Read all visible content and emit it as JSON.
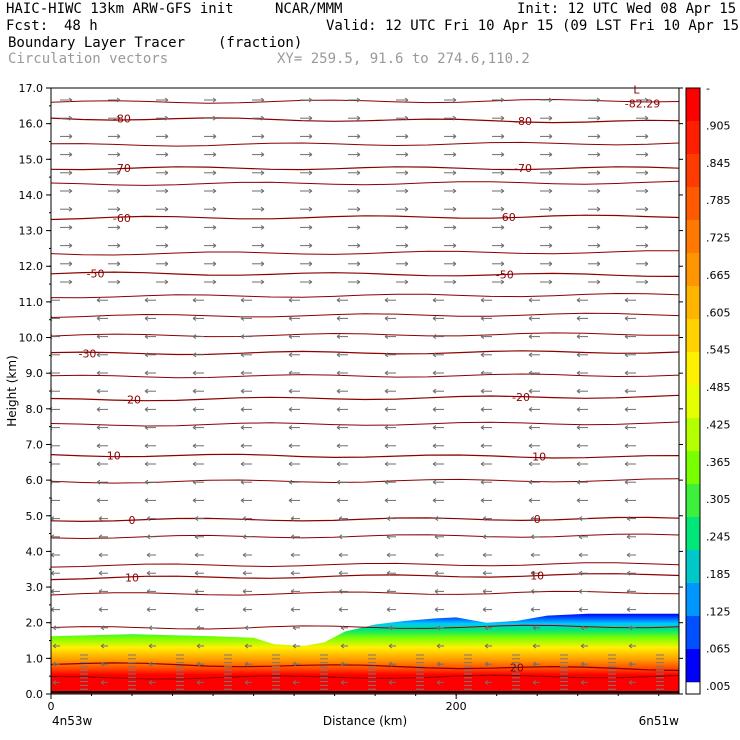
{
  "header": {
    "model": "HAIC-HIWC 13km ARW-GFS init",
    "org": "NCAR/MMM",
    "init": "Init: 12 UTC Wed 08 Apr 15",
    "fcst_label": "Fcst:",
    "fcst_value": "48 h",
    "valid": "Valid: 12 UTC Fri 10 Apr 15 (09 LST Fri 10 Apr 15)",
    "field": "Boundary Layer Tracer",
    "units": "(fraction)",
    "overlay": "Circulation vectors",
    "xy": "XY= 259.5, 91.6 to 274.6,110.2"
  },
  "chart_data": {
    "type": "heatmap",
    "title": "Boundary Layer Tracer",
    "xlabel": "Distance (km)",
    "ylabel": "Height (km)",
    "xlim": [
      0,
      310
    ],
    "ylim": [
      0,
      17
    ],
    "x_ticks": [
      0,
      200
    ],
    "x_tick_labels": [
      "0",
      "200"
    ],
    "x_end_labels": [
      "4n53w",
      "6n51w"
    ],
    "y_ticks": [
      0.0,
      1.0,
      2.0,
      3.0,
      4.0,
      5.0,
      6.0,
      7.0,
      8.0,
      9.0,
      10.0,
      11.0,
      12.0,
      13.0,
      14.0,
      15.0,
      16.0,
      17.0
    ],
    "y_tick_labels": [
      "0.0",
      "1.0",
      "2.0",
      "3.0",
      "4.0",
      "5.0",
      "6.0",
      "7.0",
      "8.0",
      "9.0",
      "10.0",
      "11.0",
      "12.0",
      "13.0",
      "14.0",
      "15.0",
      "16.0",
      "17.0"
    ],
    "colorbar": {
      "labels": [
        "-",
        ".905",
        ".845",
        ".785",
        ".725",
        ".665",
        ".605",
        ".545",
        ".485",
        ".425",
        ".365",
        ".305",
        ".245",
        ".185",
        ".125",
        ".065",
        ".005"
      ],
      "colors": [
        "#ff0000",
        "#ff1e00",
        "#ff3c00",
        "#ff5a00",
        "#ff7800",
        "#ff9600",
        "#ffb400",
        "#ffd200",
        "#fff000",
        "#e6ff00",
        "#b4ff00",
        "#78ff00",
        "#3cf03c",
        "#00e678",
        "#00c8c8",
        "#0096ff",
        "#0050ff",
        "#0000ff"
      ],
      "low_color": "#ffffff"
    },
    "tracer_top_km": [
      [
        0,
        1.62
      ],
      [
        40,
        1.68
      ],
      [
        80,
        1.62
      ],
      [
        100,
        1.58
      ],
      [
        110,
        1.4
      ],
      [
        125,
        1.35
      ],
      [
        135,
        1.45
      ],
      [
        145,
        1.75
      ],
      [
        160,
        1.95
      ],
      [
        175,
        2.05
      ],
      [
        190,
        2.12
      ],
      [
        200,
        2.15
      ],
      [
        215,
        2.0
      ],
      [
        230,
        2.05
      ],
      [
        245,
        2.2
      ],
      [
        265,
        2.25
      ],
      [
        290,
        2.25
      ],
      [
        310,
        2.25
      ]
    ],
    "isotherms_c": [
      {
        "temp": -80,
        "height_left": 16.15,
        "height_right": 16.05,
        "label_x": [
          35,
          233
        ]
      },
      {
        "temp": -70,
        "height_left": 14.75,
        "height_right": 14.75,
        "label_x": [
          35,
          233
        ]
      },
      {
        "temp": -60,
        "height_left": 13.35,
        "height_right": 13.4,
        "label_x": [
          35,
          225
        ]
      },
      {
        "temp": -50,
        "height_left": 11.8,
        "height_right": 11.75,
        "label_x": [
          22,
          224
        ]
      },
      {
        "temp": -30,
        "height_left": 9.55,
        "height_right": 9.6,
        "label_x": [
          18,
          0
        ]
      },
      {
        "temp": -20,
        "height_left": 8.25,
        "height_right": 8.35,
        "label_x": [
          40,
          232
        ]
      },
      {
        "temp": -10,
        "height_left": 6.7,
        "height_right": 6.65,
        "label_x": [
          30,
          240
        ]
      },
      {
        "temp": 0,
        "height_left": 4.88,
        "height_right": 4.92,
        "label_x": [
          40,
          240
        ]
      },
      {
        "temp": 10,
        "height_left": 3.25,
        "height_right": 3.35,
        "label_x": [
          40,
          240
        ]
      },
      {
        "temp": 20,
        "height_left": 0.85,
        "height_right": 0.7,
        "label_x": [
          0,
          230
        ]
      }
    ],
    "extra_contour_heights_km": [
      16.6,
      15.4,
      14.3,
      12.35,
      11.15,
      10.6,
      10.05,
      8.9,
      7.55,
      5.95,
      4.4,
      3.6,
      2.8,
      1.85,
      0.45
    ],
    "annotations": [
      {
        "text": "L",
        "x": 289,
        "y": 16.85
      },
      {
        "text": "-82.29",
        "x": 292,
        "y": 16.45
      }
    ]
  }
}
